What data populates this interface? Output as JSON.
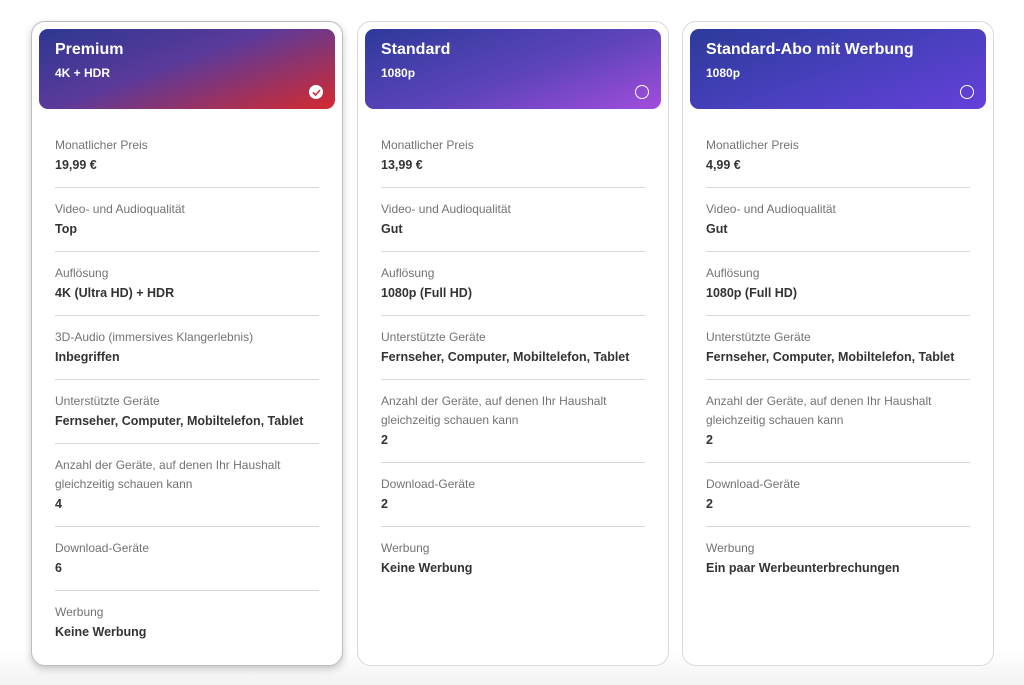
{
  "plans": [
    {
      "name": "Premium",
      "subtitle": "4K + HDR",
      "selected": true,
      "features": [
        {
          "label": "Monatlicher Preis",
          "value": "19,99 €"
        },
        {
          "label": "Video- und Audioqualität",
          "value": "Top"
        },
        {
          "label": "Auflösung",
          "value": "4K (Ultra HD) + HDR"
        },
        {
          "label": "3D-Audio (immersives Klangerlebnis)",
          "value": "Inbegriffen"
        },
        {
          "label": "Unterstützte Geräte",
          "value": "Fernseher, Computer, Mobiltelefon, Tablet"
        },
        {
          "label": "Anzahl der Geräte, auf denen Ihr Haushalt gleichzeitig schauen kann",
          "value": "4"
        },
        {
          "label": "Download-Geräte",
          "value": "6"
        },
        {
          "label": "Werbung",
          "value": "Keine Werbung"
        }
      ]
    },
    {
      "name": "Standard",
      "subtitle": "1080p",
      "selected": false,
      "features": [
        {
          "label": "Monatlicher Preis",
          "value": "13,99 €"
        },
        {
          "label": "Video- und Audioqualität",
          "value": "Gut"
        },
        {
          "label": "Auflösung",
          "value": "1080p (Full HD)"
        },
        {
          "label": "Unterstützte Geräte",
          "value": "Fernseher, Computer, Mobiltelefon, Tablet"
        },
        {
          "label": "Anzahl der Geräte, auf denen Ihr Haushalt gleichzeitig schauen kann",
          "value": "2"
        },
        {
          "label": "Download-Geräte",
          "value": "2"
        },
        {
          "label": "Werbung",
          "value": "Keine Werbung"
        }
      ]
    },
    {
      "name": "Standard-Abo mit Werbung",
      "subtitle": "1080p",
      "selected": false,
      "features": [
        {
          "label": "Monatlicher Preis",
          "value": "4,99 €"
        },
        {
          "label": "Video- und Audioqualität",
          "value": "Gut"
        },
        {
          "label": "Auflösung",
          "value": "1080p (Full HD)"
        },
        {
          "label": "Unterstützte Geräte",
          "value": "Fernseher, Computer, Mobiltelefon, Tablet"
        },
        {
          "label": "Anzahl der Geräte, auf denen Ihr Haushalt gleichzeitig schauen kann",
          "value": "2"
        },
        {
          "label": "Download-Geräte",
          "value": "2"
        },
        {
          "label": "Werbung",
          "value": "Ein paar Werbeunterbrechungen"
        }
      ]
    }
  ]
}
